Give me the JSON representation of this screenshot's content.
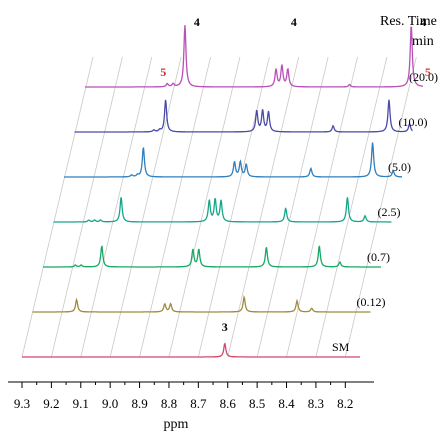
{
  "chart_data": {
    "type": "line",
    "title": "",
    "xlabel": "ppm",
    "header_line1": "Res. Time",
    "header_line2": "min",
    "xlim": [
      9.3,
      8.15
    ],
    "x_ticks": [
      9.3,
      9.2,
      9.1,
      9.0,
      8.9,
      8.8,
      8.7,
      8.6,
      8.5,
      8.4,
      8.3,
      8.2
    ],
    "x_tick_labels": [
      "9.3",
      "9.2",
      "9.1",
      "9.0",
      "8.9",
      "8.8",
      "8.7",
      "8.6",
      "8.5",
      "8.4",
      "8.3",
      "8.2"
    ],
    "grid": true,
    "series": [
      {
        "name": "SM",
        "label": "SM",
        "color": "#d4456a",
        "peaks": [
          {
            "ppm": 8.61,
            "height": 22
          }
        ]
      },
      {
        "name": "(0.12)",
        "label": "(0.12)",
        "color": "#a08a3c",
        "peaks": [
          {
            "ppm": 9.15,
            "height": 20
          },
          {
            "ppm": 8.85,
            "height": 13
          },
          {
            "ppm": 8.83,
            "height": 13
          },
          {
            "ppm": 8.58,
            "height": 24
          },
          {
            "ppm": 8.4,
            "height": 18
          },
          {
            "ppm": 8.35,
            "height": 6
          }
        ]
      },
      {
        "name": "(0.7)",
        "label": "(0.7)",
        "color": "#16a864",
        "peaks": [
          {
            "ppm": 9.19,
            "height": 3
          },
          {
            "ppm": 9.17,
            "height": 3
          },
          {
            "ppm": 9.1,
            "height": 34
          },
          {
            "ppm": 8.79,
            "height": 28
          },
          {
            "ppm": 8.77,
            "height": 28
          },
          {
            "ppm": 8.54,
            "height": 32
          },
          {
            "ppm": 8.36,
            "height": 34
          },
          {
            "ppm": 8.29,
            "height": 8
          }
        ]
      },
      {
        "name": "(2.5)",
        "label": "(2.5)",
        "color": "#17a58a",
        "peaks": [
          {
            "ppm": 9.18,
            "height": 3
          },
          {
            "ppm": 9.16,
            "height": 3
          },
          {
            "ppm": 9.14,
            "height": 3
          },
          {
            "ppm": 9.07,
            "height": 40
          },
          {
            "ppm": 8.77,
            "height": 34
          },
          {
            "ppm": 8.75,
            "height": 36
          },
          {
            "ppm": 8.73,
            "height": 34
          },
          {
            "ppm": 8.51,
            "height": 22
          },
          {
            "ppm": 8.3,
            "height": 40
          },
          {
            "ppm": 8.24,
            "height": 10
          }
        ]
      },
      {
        "name": "(5.0)",
        "label": "(5.0)",
        "color": "#2f7fbe",
        "peaks": [
          {
            "ppm": 9.07,
            "height": 3
          },
          {
            "ppm": 9.05,
            "height": 3
          },
          {
            "ppm": 9.03,
            "height": 48
          },
          {
            "ppm": 8.72,
            "height": 24
          },
          {
            "ppm": 8.7,
            "height": 24
          },
          {
            "ppm": 8.68,
            "height": 20
          },
          {
            "ppm": 8.46,
            "height": 14
          },
          {
            "ppm": 8.25,
            "height": 56
          },
          {
            "ppm": 8.18,
            "height": 10
          }
        ]
      },
      {
        "name": "(10.0)",
        "label": "(10.0)",
        "color": "#4a4aa8",
        "peaks": [
          {
            "ppm": 9.03,
            "height": 3
          },
          {
            "ppm": 9.01,
            "height": 3
          },
          {
            "ppm": 8.99,
            "height": 52
          },
          {
            "ppm": 8.68,
            "height": 34
          },
          {
            "ppm": 8.66,
            "height": 34
          },
          {
            "ppm": 8.64,
            "height": 32
          },
          {
            "ppm": 8.42,
            "height": 10
          },
          {
            "ppm": 8.23,
            "height": 52
          },
          {
            "ppm": 8.16,
            "height": 13
          }
        ]
      },
      {
        "name": "(20.0)",
        "label": "(20.0)",
        "color": "#b94fb8",
        "peaks": [
          {
            "ppm": 9.02,
            "height": 5
          },
          {
            "ppm": 9.0,
            "height": 5
          },
          {
            "ppm": 8.96,
            "height": 100
          },
          {
            "ppm": 8.65,
            "height": 28
          },
          {
            "ppm": 8.63,
            "height": 34
          },
          {
            "ppm": 8.61,
            "height": 28
          },
          {
            "ppm": 8.4,
            "height": 4
          },
          {
            "ppm": 8.19,
            "height": 100
          },
          {
            "ppm": 8.12,
            "height": 11
          }
        ]
      }
    ],
    "annotations": [
      {
        "text": "3",
        "color": "#000000",
        "series": "SM",
        "ppm": 8.61
      },
      {
        "text": "4",
        "color": "#000000",
        "series": "(20.0)",
        "ppm": 8.96
      },
      {
        "text": "4",
        "color": "#000000",
        "series": "(20.0)",
        "ppm": 8.63
      },
      {
        "text": "4",
        "color": "#000000",
        "series": "(20.0)",
        "ppm": 8.19
      },
      {
        "text": "5",
        "color": "#d0302f",
        "series": "(20.0)",
        "ppm": 9.02
      },
      {
        "text": "5",
        "color": "#d0302f",
        "series": "(20.0)",
        "ppm": 8.12
      }
    ]
  }
}
